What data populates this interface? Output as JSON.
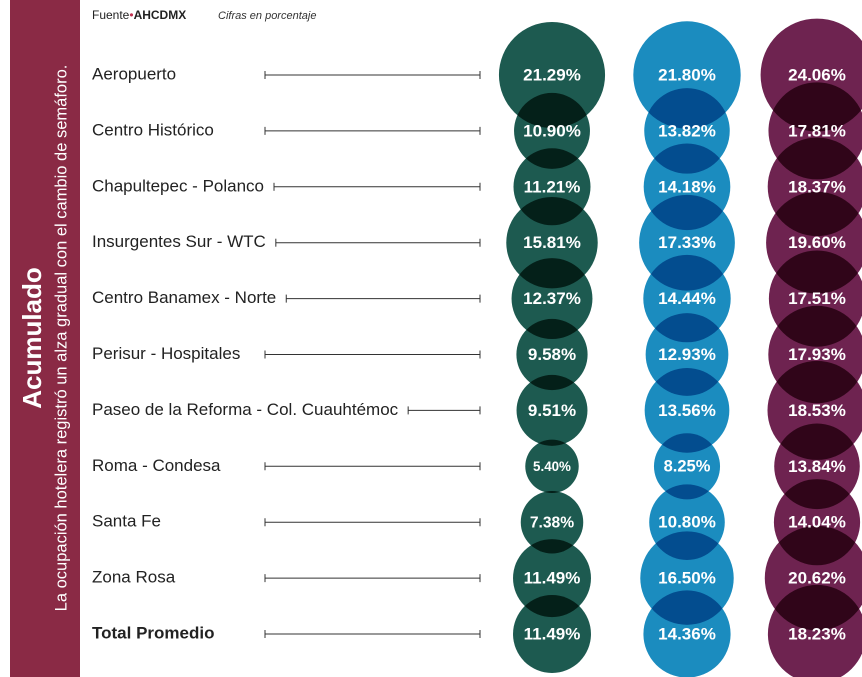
{
  "source_label": "Fuente",
  "source": "AHCDMX",
  "units_note": "Cifras en porcentaje",
  "side_title": "Acumulado",
  "side_subtitle": "La ocupación hotelera registró un alza gradual con el cambio de semáforo.",
  "chart_data": {
    "type": "bubble",
    "categories": [
      "Aeropuerto",
      "Centro Histórico",
      "Chapultepec - Polanco",
      "Insurgentes Sur - WTC",
      "Centro Banamex - Norte",
      "Perisur - Hospitales",
      "Paseo de la Reforma - Col. Cuauhtémoc",
      "Roma - Condesa",
      "Santa Fe",
      "Zona Rosa",
      "Total Promedio"
    ],
    "series": [
      {
        "color": "#1d5a50",
        "values": [
          21.29,
          10.9,
          11.21,
          15.81,
          12.37,
          9.58,
          9.51,
          5.4,
          7.38,
          11.49,
          11.49
        ],
        "value_labels": [
          "21.29%",
          "10.90%",
          "11.21%",
          "15.81%",
          "12.37%",
          "9.58%",
          "9.51%",
          "5.40%",
          "7.38%",
          "11.49%",
          "11.49%"
        ]
      },
      {
        "color": "#1b8cbf",
        "values": [
          21.8,
          13.82,
          14.18,
          17.33,
          14.44,
          12.93,
          13.56,
          8.25,
          10.8,
          16.5,
          14.36
        ],
        "value_labels": [
          "21.80%",
          "13.82%",
          "14.18%",
          "17.33%",
          "14.44%",
          "12.93%",
          "13.56%",
          "8.25%",
          "10.80%",
          "16.50%",
          "14.36%"
        ]
      },
      {
        "color": "#6e2350",
        "values": [
          24.06,
          17.81,
          18.37,
          19.6,
          17.51,
          17.93,
          18.53,
          13.84,
          14.04,
          20.62,
          18.23
        ],
        "value_labels": [
          "24.06%",
          "17.81%",
          "18.37%",
          "19.60%",
          "17.51%",
          "17.93%",
          "18.53%",
          "13.84%",
          "14.04%",
          "20.62%",
          "18.23%"
        ]
      }
    ]
  }
}
